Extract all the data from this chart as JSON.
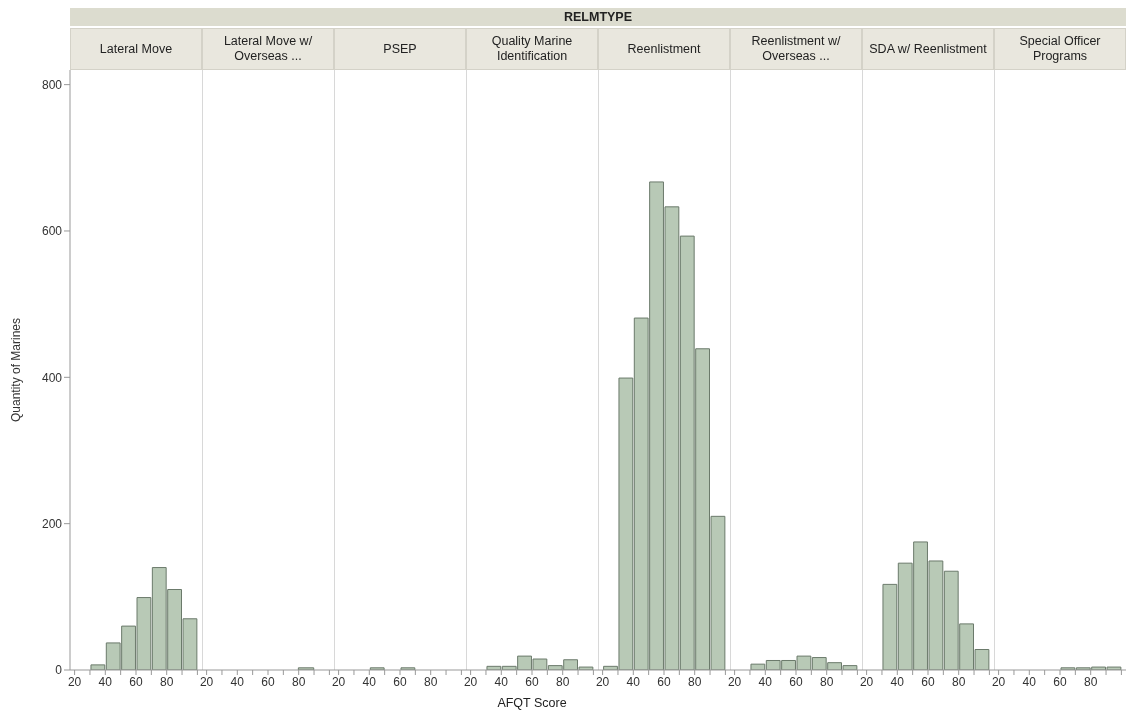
{
  "chart_data": [
    {
      "type": "histogram",
      "title": "Lateral Move",
      "annotations": [
        "RELMTYPE"
      ],
      "ylabel": "Quantity of Marines",
      "bins": [
        30,
        40,
        50,
        60,
        70,
        80,
        90,
        100
      ],
      "values": [
        7,
        37,
        60,
        99,
        140,
        110,
        70
      ],
      "color": "#b8c9b6",
      "xlim": [
        17,
        103
      ],
      "xticks": [
        20,
        {
          "value": 30,
          "label": null
        },
        40,
        {
          "value": 50,
          "label": null
        },
        60,
        {
          "value": 70,
          "label": null
        },
        80,
        {
          "value": 90,
          "label": null
        },
        {
          "value": 100,
          "label": null
        }
      ],
      "ylim": [
        0,
        820
      ],
      "yticks": [
        0,
        200,
        400,
        600,
        800
      ],
      "grid": false
    },
    {
      "type": "histogram",
      "title": "Lateral Move w/ Overseas ...",
      "bins": [
        80,
        90
      ],
      "values": [
        3
      ],
      "color": "#b8c9b6",
      "xlim": [
        17,
        103
      ],
      "xticks": [
        20,
        {
          "value": 30,
          "label": null
        },
        40,
        {
          "value": 50,
          "label": null
        },
        60,
        {
          "value": 70,
          "label": null
        },
        80,
        {
          "value": 90,
          "label": null
        },
        {
          "value": 100,
          "label": null
        }
      ],
      "ylim": [
        0,
        820
      ],
      "yticks": [
        0,
        200,
        400,
        600,
        800
      ],
      "tick_labels": "x",
      "grid": false
    },
    {
      "type": "histogram",
      "title": "PSEP",
      "bins": [
        40,
        50,
        60,
        70
      ],
      "values": [
        3,
        0,
        3
      ],
      "color": "#b8c9b6",
      "xlim": [
        17,
        103
      ],
      "xticks": [
        20,
        {
          "value": 30,
          "label": null
        },
        40,
        {
          "value": 50,
          "label": null
        },
        60,
        {
          "value": 70,
          "label": null
        },
        80,
        {
          "value": 90,
          "label": null
        },
        {
          "value": 100,
          "label": null
        }
      ],
      "ylim": [
        0,
        820
      ],
      "yticks": [
        0,
        200,
        400,
        600,
        800
      ],
      "tick_labels": "x",
      "grid": false
    },
    {
      "type": "histogram",
      "title": "Quality Marine Identification",
      "xlabel": "AFQT Score",
      "bins": [
        30,
        40,
        50,
        60,
        70,
        80,
        90,
        100
      ],
      "values": [
        5,
        5,
        19,
        15,
        6,
        14,
        4
      ],
      "color": "#b8c9b6",
      "xlim": [
        17,
        103
      ],
      "xticks": [
        20,
        {
          "value": 30,
          "label": null
        },
        40,
        {
          "value": 50,
          "label": null
        },
        60,
        {
          "value": 70,
          "label": null
        },
        80,
        {
          "value": 90,
          "label": null
        },
        {
          "value": 100,
          "label": null
        }
      ],
      "ylim": [
        0,
        820
      ],
      "yticks": [
        0,
        200,
        400,
        600,
        800
      ],
      "tick_labels": "x",
      "grid": false
    },
    {
      "type": "histogram",
      "title": "Reenlistment",
      "bins": [
        20,
        30,
        40,
        50,
        60,
        70,
        80,
        90,
        100
      ],
      "values": [
        5,
        399,
        481,
        667,
        633,
        593,
        439,
        210
      ],
      "color": "#b8c9b6",
      "xlim": [
        17,
        103
      ],
      "xticks": [
        20,
        {
          "value": 30,
          "label": null
        },
        40,
        {
          "value": 50,
          "label": null
        },
        60,
        {
          "value": 70,
          "label": null
        },
        80,
        {
          "value": 90,
          "label": null
        },
        {
          "value": 100,
          "label": null
        }
      ],
      "ylim": [
        0,
        820
      ],
      "yticks": [
        0,
        200,
        400,
        600,
        800
      ],
      "tick_labels": "x",
      "grid": false
    },
    {
      "type": "histogram",
      "title": "Reenlistment w/ Overseas ...",
      "bins": [
        30,
        40,
        50,
        60,
        70,
        80,
        90,
        100
      ],
      "values": [
        8,
        13,
        13,
        19,
        17,
        10,
        6
      ],
      "color": "#b8c9b6",
      "xlim": [
        17,
        103
      ],
      "xticks": [
        20,
        {
          "value": 30,
          "label": null
        },
        40,
        {
          "value": 50,
          "label": null
        },
        60,
        {
          "value": 70,
          "label": null
        },
        80,
        {
          "value": 90,
          "label": null
        },
        {
          "value": 100,
          "label": null
        }
      ],
      "ylim": [
        0,
        820
      ],
      "yticks": [
        0,
        200,
        400,
        600,
        800
      ],
      "tick_labels": "x",
      "grid": false
    },
    {
      "type": "histogram",
      "title": "SDA w/ Reenlistment",
      "bins": [
        30,
        40,
        50,
        60,
        70,
        80,
        90,
        100
      ],
      "values": [
        117,
        146,
        175,
        149,
        135,
        63,
        28
      ],
      "color": "#b8c9b6",
      "xlim": [
        17,
        103
      ],
      "xticks": [
        20,
        {
          "value": 30,
          "label": null
        },
        40,
        {
          "value": 50,
          "label": null
        },
        60,
        {
          "value": 70,
          "label": null
        },
        80,
        {
          "value": 90,
          "label": null
        },
        {
          "value": 100,
          "label": null
        }
      ],
      "ylim": [
        0,
        820
      ],
      "yticks": [
        0,
        200,
        400,
        600,
        800
      ],
      "tick_labels": "x",
      "grid": false
    },
    {
      "type": "histogram",
      "title": "Special Officer Programs",
      "bins": [
        60,
        70,
        80,
        90,
        100
      ],
      "values": [
        3,
        3,
        4,
        4
      ],
      "color": "#b8c9b6",
      "xlim": [
        17,
        103
      ],
      "xticks": [
        20,
        {
          "value": 30,
          "label": null
        },
        40,
        {
          "value": 50,
          "label": null
        },
        60,
        {
          "value": 70,
          "label": null
        },
        80,
        {
          "value": 90,
          "label": null
        },
        {
          "value": 100,
          "label": null
        }
      ],
      "ylim": [
        0,
        820
      ],
      "yticks": [
        0,
        200,
        400,
        600,
        800
      ],
      "tick_labels": "x",
      "grid": false
    }
  ]
}
